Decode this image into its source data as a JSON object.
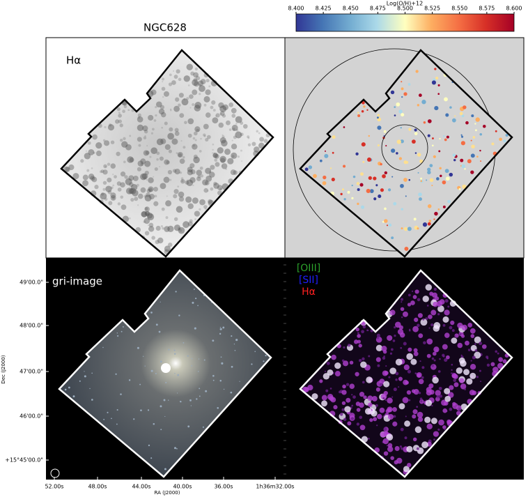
{
  "title": "NGC628",
  "colorbar": {
    "label": "Log(O/H)+12",
    "lim": [
      8.4,
      8.6
    ],
    "ticks": [
      {
        "value": 8.4,
        "label": "8.400"
      },
      {
        "value": 8.425,
        "label": "8.425"
      },
      {
        "value": 8.45,
        "label": "8.450"
      },
      {
        "value": 8.475,
        "label": "8.475"
      },
      {
        "value": 8.5,
        "label": "8.500"
      },
      {
        "value": 8.525,
        "label": "8.525"
      },
      {
        "value": 8.55,
        "label": "8.550"
      },
      {
        "value": 8.575,
        "label": "8.575"
      },
      {
        "value": 8.6,
        "label": "8.600"
      }
    ]
  },
  "panels": {
    "halpha": "Hα",
    "gri": "gri-image",
    "rgb": [
      "[OIII]",
      "[SII]",
      "Hα"
    ]
  },
  "x_axis": {
    "label": "RA (J2000)",
    "ticks": [
      "52.00s",
      "48.00s",
      "44.00s",
      "40.00s",
      "36.00s",
      "1h36m32.00s"
    ]
  },
  "y_axis": {
    "label": "Dec (J2000)",
    "ticks": [
      "49'00.0\"",
      "48'00.0\"",
      "47'00.0\"",
      "46'00.0\"",
      "+15°45'00.0\""
    ]
  }
}
